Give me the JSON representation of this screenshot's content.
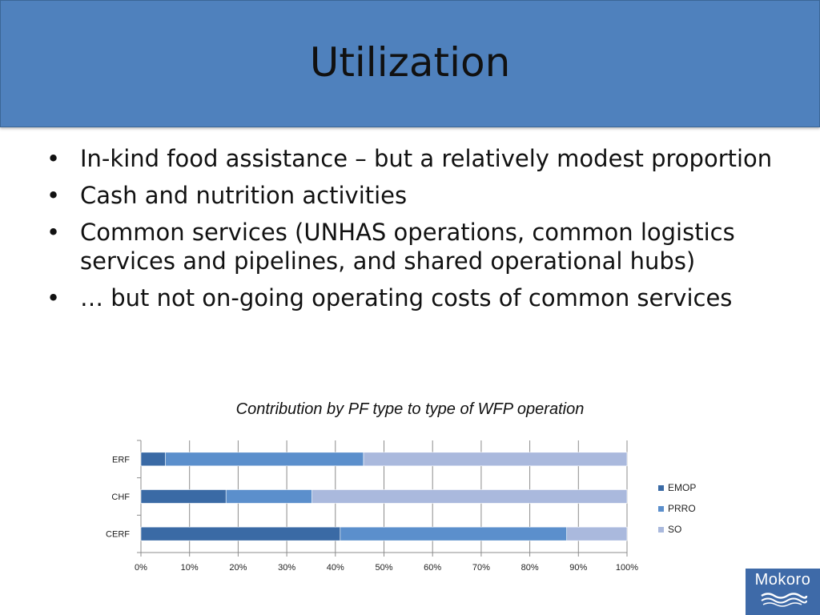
{
  "slide": {
    "title": "Utilization",
    "bullets": [
      "In-kind food assistance – but a relatively modest proportion",
      "Cash and nutrition activities",
      "Common services (UNHAS operations, common logistics services and pipelines, and shared operational hubs)",
      "… but not on-going operating costs of common services"
    ],
    "bullet_symbol": "•",
    "logo_text": "Mokoro"
  },
  "chart_data": {
    "type": "bar",
    "orientation": "horizontal",
    "stacked": "percent",
    "title": "Contribution by PF type to type of WFP operation",
    "categories": [
      "ERF",
      "CHF",
      "CERF"
    ],
    "series": [
      {
        "name": "EMOP",
        "values": [
          5,
          17.5,
          41
        ],
        "color": "#3a6aa5"
      },
      {
        "name": "PRRO",
        "values": [
          40.8,
          17.7,
          46.6
        ],
        "color": "#5b8fcc"
      },
      {
        "name": "SO",
        "values": [
          54.2,
          64.8,
          12.4
        ],
        "color": "#aab9dd"
      }
    ],
    "x_ticks": [
      "0%",
      "10%",
      "20%",
      "30%",
      "40%",
      "50%",
      "60%",
      "70%",
      "80%",
      "90%",
      "100%"
    ],
    "xlim": [
      0,
      100
    ],
    "grid": "vertical",
    "legend_position": "right"
  }
}
